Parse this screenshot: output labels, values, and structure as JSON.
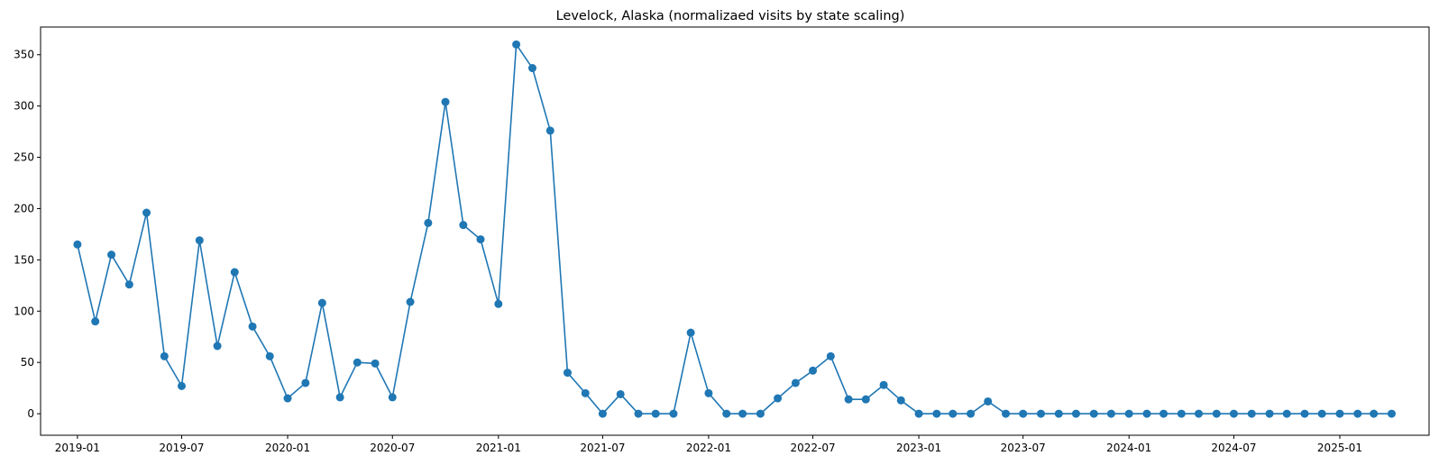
{
  "chart_data": {
    "type": "line",
    "title": "Levelock, Alaska (normalizaed visits by state scaling)",
    "xlabel": "",
    "ylabel": "",
    "x_axis": "date",
    "xlim": [
      "2018-10-29",
      "2025-06-05"
    ],
    "ylim": [
      -21,
      377
    ],
    "x_ticks": [
      "2019-01",
      "2019-07",
      "2020-01",
      "2020-07",
      "2021-01",
      "2021-07",
      "2022-01",
      "2022-07",
      "2023-01",
      "2023-07",
      "2024-01",
      "2024-07",
      "2025-01"
    ],
    "y_ticks": [
      0,
      50,
      100,
      150,
      200,
      250,
      300,
      350
    ],
    "grid": false,
    "legend": "none",
    "marker": "circle",
    "color": "#1f77b4",
    "series": [
      {
        "x": [
          "2019-01-01",
          "2019-02-01",
          "2019-03-01",
          "2019-04-01",
          "2019-05-01",
          "2019-06-01",
          "2019-07-01",
          "2019-08-01",
          "2019-09-01",
          "2019-10-01",
          "2019-11-01",
          "2019-12-01",
          "2020-01-01",
          "2020-02-01",
          "2020-03-01",
          "2020-04-01",
          "2020-05-01",
          "2020-06-01",
          "2020-07-01",
          "2020-08-01",
          "2020-09-01",
          "2020-10-01",
          "2020-11-01",
          "2020-12-01",
          "2021-01-01",
          "2021-02-01",
          "2021-03-01",
          "2021-04-01",
          "2021-05-01",
          "2021-06-01",
          "2021-07-01",
          "2021-08-01",
          "2021-09-01",
          "2021-10-01",
          "2021-11-01",
          "2021-12-01",
          "2022-01-01",
          "2022-02-01",
          "2022-03-01",
          "2022-04-01",
          "2022-05-01",
          "2022-06-01",
          "2022-07-01",
          "2022-08-01",
          "2022-09-01",
          "2022-10-01",
          "2022-11-01",
          "2022-12-01",
          "2023-01-01",
          "2023-02-01",
          "2023-03-01",
          "2023-04-01",
          "2023-05-01",
          "2023-06-01",
          "2023-07-01",
          "2023-08-01",
          "2023-09-01",
          "2023-10-01",
          "2023-11-01",
          "2023-12-01",
          "2024-01-01",
          "2024-02-01",
          "2024-03-01",
          "2024-04-01",
          "2024-05-01",
          "2024-06-01",
          "2024-07-01",
          "2024-08-01",
          "2024-09-01",
          "2024-10-01",
          "2024-11-01",
          "2024-12-01",
          "2025-01-01",
          "2025-02-01",
          "2025-03-01",
          "2025-04-01"
        ],
        "y": [
          165,
          90,
          155,
          126,
          196,
          56,
          27,
          169,
          66,
          138,
          85,
          56,
          15,
          30,
          108,
          16,
          50,
          49,
          16,
          109,
          186,
          304,
          184,
          170,
          107,
          360,
          337,
          276,
          40,
          20,
          0,
          19,
          0,
          0,
          0,
          79,
          20,
          0,
          0,
          0,
          15,
          30,
          42,
          56,
          14,
          14,
          28,
          13,
          0,
          0,
          0,
          0,
          12,
          0,
          0,
          0,
          0,
          0,
          0,
          0,
          0,
          0,
          0,
          0,
          0,
          0,
          0,
          0,
          0,
          0,
          0,
          0,
          0,
          0,
          0,
          0
        ]
      }
    ]
  }
}
